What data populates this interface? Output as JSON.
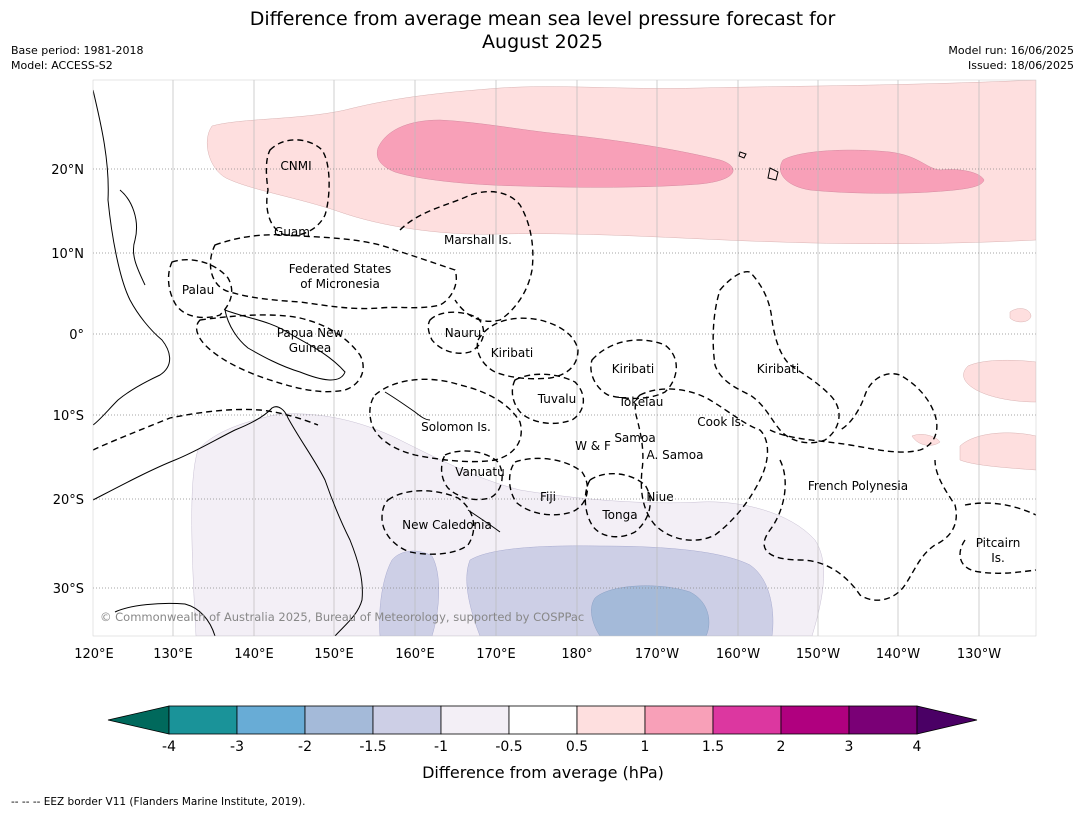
{
  "title_line1": "Difference from average mean sea level pressure forecast for",
  "title_line2": "August 2025",
  "meta_left": {
    "base_period": "Base period: 1981-2018",
    "model": "Model: ACCESS-S2"
  },
  "meta_right": {
    "model_run": "Model run: 16/06/2025",
    "issued": "Issued: 18/06/2025"
  },
  "lon_labels": [
    "120°E",
    "130°E",
    "140°E",
    "150°E",
    "160°E",
    "170°E",
    "180°",
    "170°W",
    "160°W",
    "150°W",
    "140°W",
    "130°W"
  ],
  "lat_labels": [
    "20°N",
    "10°N",
    "0°",
    "10°S",
    "20°S",
    "30°S"
  ],
  "copyright": "© Commonwealth of Australia 2025, Bureau of Meteorology, supported by COSPPac",
  "regions": {
    "cnmi": "CNMI",
    "guam": "Guam",
    "marshall": "Marshall Is.",
    "fsm_1": "Federated States",
    "fsm_2": "of Micronesia",
    "palau": "Palau",
    "png_1": "Papua New",
    "png_2": "Guinea",
    "nauru": "Nauru",
    "kiribati_w": "Kiribati",
    "kiribati_c": "Kiribati",
    "kiribati_e": "Kiribati",
    "tuvalu": "Tuvalu",
    "tokelau": "Tokelau",
    "cook": "Cook Is.",
    "solomon": "Solomon Is.",
    "samoa": "Samoa",
    "wf": "W & F",
    "asamoa": "A. Samoa",
    "vanuatu": "Vanuatu",
    "fiji": "Fiji",
    "niue": "Niue",
    "tonga": "Tonga",
    "new_caledonia": "New Caledonia",
    "french_polynesia": "French Polynesia",
    "pitcairn_1": "Pitcairn",
    "pitcairn_2": "Is."
  },
  "colorbar": {
    "labels": [
      "-4",
      "-3",
      "-2",
      "-1.5",
      "-1",
      "-0.5",
      "0.5",
      "1",
      "1.5",
      "2",
      "3",
      "4"
    ],
    "colors": [
      "#1a9399",
      "#68acd6",
      "#a4bad9",
      "#cdcfe6",
      "#f3eff6",
      "#ffffff",
      "#fedfdf",
      "#f8a0b8",
      "#dc37a0",
      "#b0007f",
      "#7a0076"
    ],
    "under_color": "#00695c",
    "over_color": "#4a0065",
    "label": "Difference from average (hPa)"
  },
  "footnote": "--  --  -- EEZ border V11 (Flanders Marine Institute, 2019)."
}
